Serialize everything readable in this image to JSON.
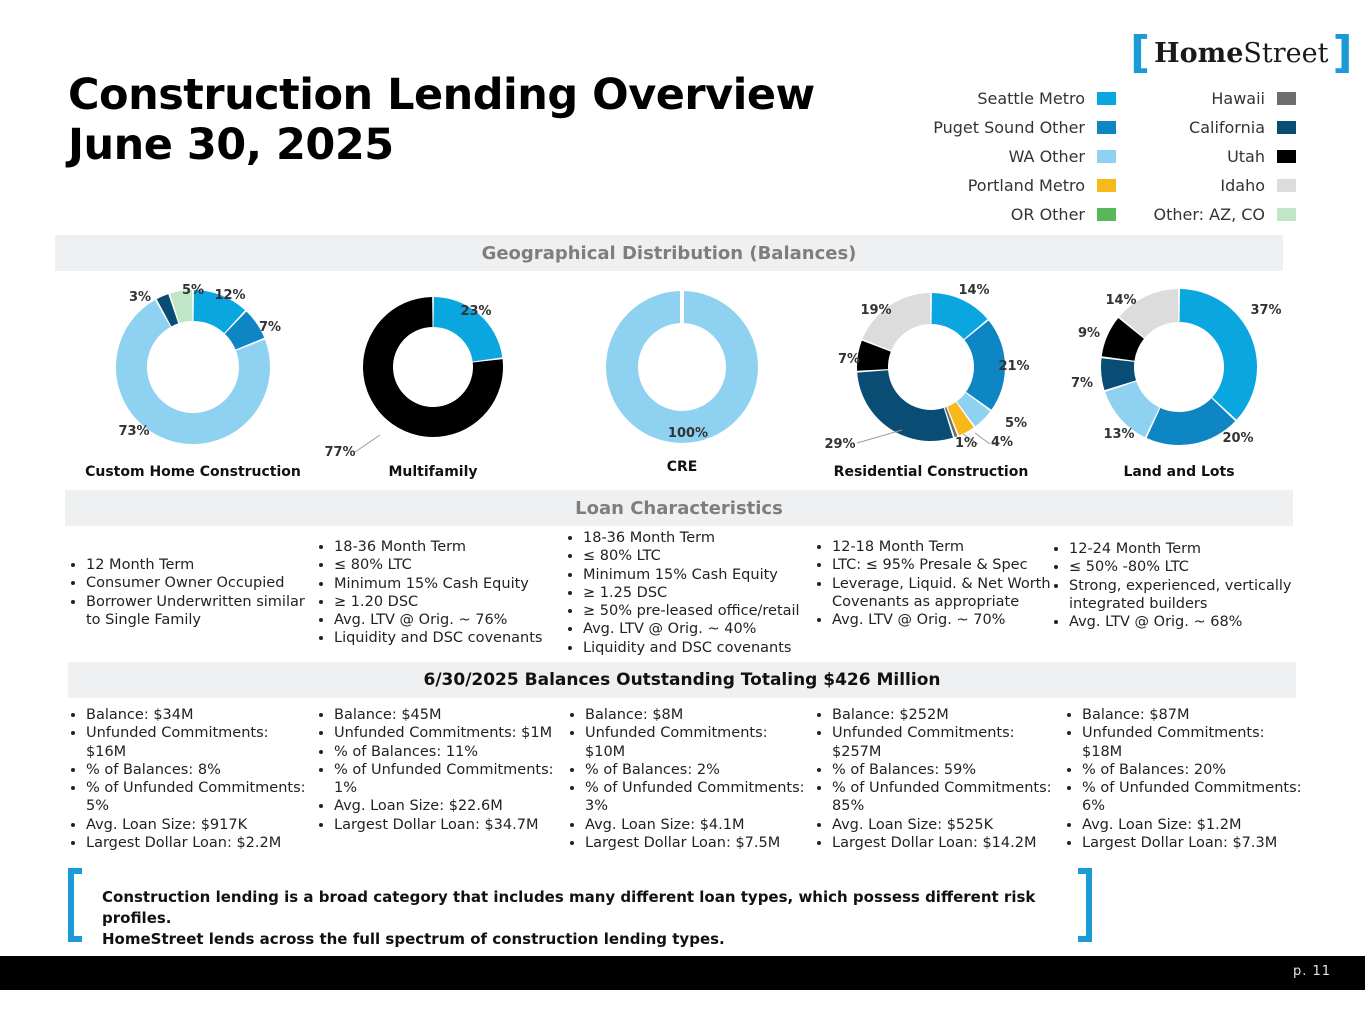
{
  "header": {
    "title_line1": "Construction Lending Overview",
    "title_line2": "June 30, 2025",
    "logo_bracket_left": "[",
    "logo_bold": "Home",
    "logo_regular": "Street",
    "logo_bracket_right": "]"
  },
  "legend": {
    "left": [
      {
        "label": "Seattle Metro",
        "color": "#0aa6df"
      },
      {
        "label": "Puget Sound Other",
        "color": "#0e86c3"
      },
      {
        "label": "WA Other",
        "color": "#8fd1f0"
      },
      {
        "label": "Portland Metro",
        "color": "#f6b81a"
      },
      {
        "label": "OR Other",
        "color": "#56b85a"
      }
    ],
    "right": [
      {
        "label": "Hawaii",
        "color": "#6d6d6d"
      },
      {
        "label": "California",
        "color": "#0a4d74"
      },
      {
        "label": "Utah",
        "color": "#000000"
      },
      {
        "label": "Idaho",
        "color": "#dcdcdc"
      },
      {
        "label": "Other: AZ, CO",
        "color": "#bfe6c5"
      }
    ]
  },
  "sections": {
    "geo_title": "Geographical Distribution (Balances)",
    "char_title": "Loan Characteristics",
    "balances_title": "6/30/2025 Balances Outstanding Totaling $426 Million"
  },
  "chart_data": [
    {
      "type": "pie",
      "title": "Custom Home Construction",
      "categories": [
        "Seattle Metro",
        "Puget Sound Other",
        "WA Other",
        "California",
        "Other: AZ, CO"
      ],
      "values": [
        12,
        7,
        73,
        3,
        5
      ],
      "labels": [
        "12%",
        "7%",
        "73%",
        "3%",
        "5%"
      ],
      "colors": [
        "#0aa6df",
        "#0e86c3",
        "#8fd1f0",
        "#0a4d74",
        "#bfe6c5"
      ]
    },
    {
      "type": "pie",
      "title": "Multifamily",
      "categories": [
        "Seattle Metro",
        "Utah"
      ],
      "values": [
        23,
        77
      ],
      "labels": [
        "23%",
        "77%"
      ],
      "colors": [
        "#0aa6df",
        "#000000"
      ]
    },
    {
      "type": "pie",
      "title": "CRE",
      "categories": [
        "WA Other"
      ],
      "values": [
        100
      ],
      "labels": [
        "100%"
      ],
      "colors": [
        "#8fd1f0"
      ]
    },
    {
      "type": "pie",
      "title": "Residential Construction",
      "categories": [
        "Seattle Metro",
        "Puget Sound Other",
        "WA Other",
        "Portland Metro",
        "Hawaii",
        "California",
        "Utah",
        "Idaho"
      ],
      "values": [
        14,
        21,
        5,
        4,
        1,
        29,
        7,
        19
      ],
      "labels": [
        "14%",
        "21%",
        "5%",
        "4%",
        "1%",
        "29%",
        "7%",
        "19%"
      ],
      "colors": [
        "#0aa6df",
        "#0e86c3",
        "#8fd1f0",
        "#f6b81a",
        "#6d6d6d",
        "#0a4d74",
        "#000000",
        "#dcdcdc"
      ]
    },
    {
      "type": "pie",
      "title": "Land and Lots",
      "categories": [
        "Seattle Metro",
        "Puget Sound Other",
        "WA Other",
        "California",
        "Utah",
        "Idaho"
      ],
      "values": [
        37,
        20,
        13,
        7,
        9,
        14
      ],
      "labels": [
        "37%",
        "20%",
        "13%",
        "7%",
        "9%",
        "14%"
      ],
      "colors": [
        "#0aa6df",
        "#0e86c3",
        "#8fd1f0",
        "#0a4d74",
        "#000000",
        "#dcdcdc"
      ]
    }
  ],
  "characteristics": [
    [
      "12 Month Term",
      "Consumer Owner Occupied",
      "Borrower Underwritten similar to Single Family"
    ],
    [
      "18-36 Month Term",
      "≤ 80% LTC",
      "Minimum 15% Cash Equity",
      "≥ 1.20 DSC",
      "Avg. LTV @ Orig. ~  76%",
      "Liquidity and DSC covenants"
    ],
    [
      "18-36 Month Term",
      "≤ 80% LTC",
      "Minimum 15% Cash Equity",
      "≥ 1.25 DSC",
      "≥  50% pre-leased office/retail",
      "Avg. LTV @ Orig. ~ 40%",
      "Liquidity and DSC covenants"
    ],
    [
      "12-18 Month Term",
      "LTC:  ≤ 95%  Presale & Spec",
      "Leverage, Liquid. & Net Worth Covenants as appropriate",
      "Avg. LTV @ Orig. ~ 70%"
    ],
    [
      "12-24 Month Term",
      "≤ 50% -80% LTC",
      " Strong, experienced, vertically integrated builders",
      "Avg. LTV @ Orig. ~ 68%"
    ]
  ],
  "balances": [
    [
      "Balance: $34M",
      "Unfunded Commitments: $16M",
      "% of Balances: 8%",
      "% of Unfunded Commitments: 5%",
      "Avg. Loan Size: $917K",
      "Largest Dollar Loan:  $2.2M"
    ],
    [
      "Balance: $45M",
      "Unfunded Commitments: $1M",
      "% of Balances: 11%",
      "% of Unfunded Commitments: 1%",
      "Avg. Loan Size: $22.6M",
      "Largest Dollar Loan: $34.7M"
    ],
    [
      "Balance: $8M",
      "Unfunded Commitments: $10M",
      "% of Balances: 2%",
      "% of Unfunded Commitments: 3%",
      "Avg. Loan Size: $4.1M",
      "Largest Dollar Loan: $7.5M"
    ],
    [
      "Balance: $252M",
      "Unfunded Commitments: $257M",
      "% of Balances: 59%",
      "% of Unfunded Commitments: 85%",
      "Avg. Loan Size: $525K",
      "Largest Dollar Loan: $14.2M"
    ],
    [
      "Balance: $87M",
      "Unfunded Commitments: $18M",
      "% of Balances: 20%",
      "% of Unfunded Commitments: 6%",
      "Avg. Loan Size: $1.2M",
      "Largest Dollar Loan: $7.3M"
    ]
  ],
  "footer": {
    "note_line1": "Construction lending is a broad category that includes many different loan types, which possess different risk profiles.",
    "note_line2": "HomeStreet lends across the full spectrum of construction lending types.",
    "page": "p. 11"
  }
}
